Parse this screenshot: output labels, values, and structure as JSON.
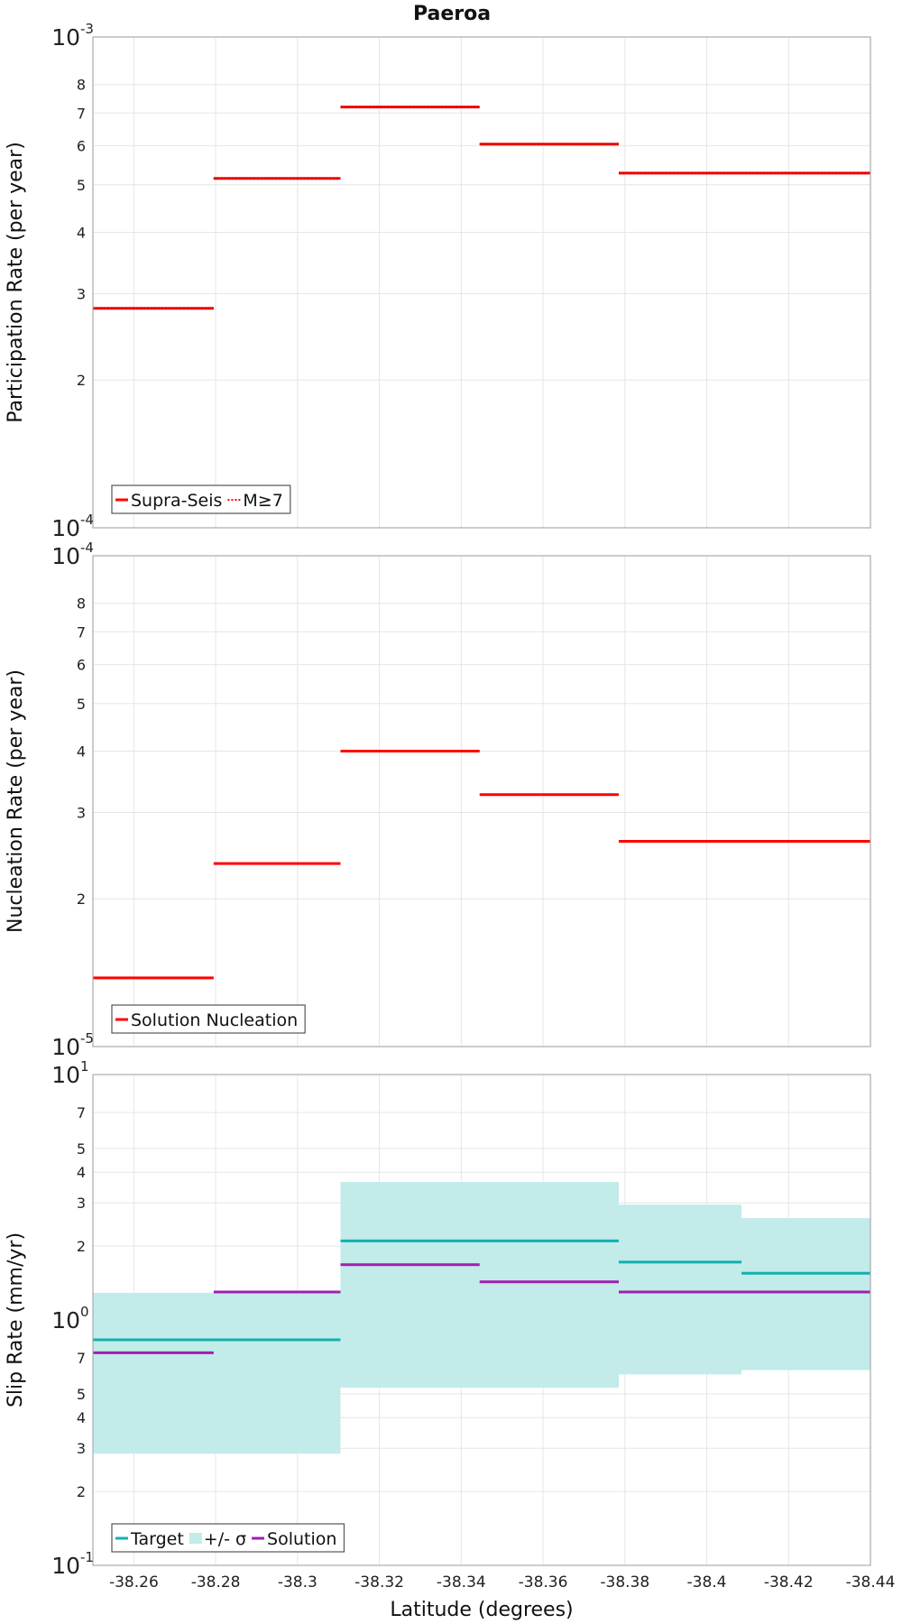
{
  "title": "Paeroa",
  "colors": {
    "red": "#ff0000",
    "teal": "#12b0b0",
    "band": "#c2ebea",
    "purple": "#a020b0",
    "grid": "#e6e6e6",
    "frame": "#aaaaaa"
  },
  "x_axis": {
    "label": "Latitude (degrees)",
    "range": [
      -38.25,
      -38.44
    ],
    "ticks": [
      -38.26,
      -38.28,
      -38.3,
      -38.32,
      -38.34,
      -38.36,
      -38.38,
      -38.4,
      -38.42,
      -38.44
    ],
    "tick_labels": [
      "-38.26",
      "-38.28",
      "-38.3",
      "-38.32",
      "-38.34",
      "-38.36",
      "-38.38",
      "-38.4",
      "-38.42",
      "-38.44"
    ]
  },
  "chart_data": [
    {
      "type": "line",
      "ylabel": "Participation Rate (per year)",
      "yscale": "log",
      "ylim": [
        0.0001,
        0.001
      ],
      "decade_labels": [
        {
          "value": 0.001,
          "base": "10",
          "exp": "-3"
        },
        {
          "value": 0.0001,
          "base": "10",
          "exp": "-4"
        }
      ],
      "minor_ticks": [
        {
          "value": 0.0002,
          "label": "2"
        },
        {
          "value": 0.0003,
          "label": "3"
        },
        {
          "value": 0.0004,
          "label": "4"
        },
        {
          "value": 0.0005,
          "label": "5"
        },
        {
          "value": 0.0006,
          "label": "6"
        },
        {
          "value": 0.0007,
          "label": "7"
        },
        {
          "value": 0.0008,
          "label": "8"
        }
      ],
      "legend": {
        "placement": "bottom-left",
        "entries": [
          {
            "label": "Supra-Seis",
            "style": "solid",
            "color": "#ff0000"
          },
          {
            "label": "M≥7",
            "style": "dotted",
            "color": "#ff0000"
          }
        ]
      },
      "series": [
        {
          "name": "Supra-Seis",
          "style": "solid",
          "color": "#ff0000",
          "segments": [
            {
              "x0": -38.25,
              "x1": -38.2795,
              "y": 0.00028
            },
            {
              "x0": -38.2795,
              "x1": -38.3105,
              "y": 0.000515
            },
            {
              "x0": -38.3105,
              "x1": -38.3445,
              "y": 0.00072
            },
            {
              "x0": -38.3445,
              "x1": -38.3785,
              "y": 0.000605
            },
            {
              "x0": -38.3785,
              "x1": -38.44,
              "y": 0.000528
            }
          ]
        },
        {
          "name": "M≥7",
          "style": "dotted",
          "color": "#cc0000",
          "segments": [
            {
              "x0": -38.25,
              "x1": -38.2795,
              "y": 0.00028
            },
            {
              "x0": -38.2795,
              "x1": -38.3105,
              "y": 0.000515
            },
            {
              "x0": -38.3105,
              "x1": -38.3445,
              "y": 0.00072
            },
            {
              "x0": -38.3445,
              "x1": -38.3785,
              "y": 0.000605
            },
            {
              "x0": -38.3785,
              "x1": -38.44,
              "y": 0.000528
            }
          ]
        }
      ]
    },
    {
      "type": "line",
      "ylabel": "Nucleation Rate (per year)",
      "yscale": "log",
      "ylim": [
        1e-05,
        0.0001
      ],
      "decade_labels": [
        {
          "value": 0.0001,
          "base": "10",
          "exp": "-4"
        },
        {
          "value": 1e-05,
          "base": "10",
          "exp": "-5"
        }
      ],
      "minor_ticks": [
        {
          "value": 2e-05,
          "label": "2"
        },
        {
          "value": 3e-05,
          "label": "3"
        },
        {
          "value": 4e-05,
          "label": "4"
        },
        {
          "value": 5e-05,
          "label": "5"
        },
        {
          "value": 6e-05,
          "label": "6"
        },
        {
          "value": 7e-05,
          "label": "7"
        },
        {
          "value": 8e-05,
          "label": "8"
        }
      ],
      "legend": {
        "placement": "bottom-left",
        "entries": [
          {
            "label": "Solution Nucleation",
            "style": "solid",
            "color": "#ff0000"
          }
        ]
      },
      "series": [
        {
          "name": "Solution Nucleation",
          "style": "solid",
          "color": "#ff0000",
          "segments": [
            {
              "x0": -38.25,
              "x1": -38.2795,
              "y": 1.38e-05
            },
            {
              "x0": -38.2795,
              "x1": -38.3105,
              "y": 2.36e-05
            },
            {
              "x0": -38.3105,
              "x1": -38.3445,
              "y": 4e-05
            },
            {
              "x0": -38.3445,
              "x1": -38.3785,
              "y": 3.26e-05
            },
            {
              "x0": -38.3785,
              "x1": -38.44,
              "y": 2.62e-05
            }
          ]
        }
      ]
    },
    {
      "type": "line",
      "ylabel": "Slip Rate (mm/yr)",
      "yscale": "log",
      "ylim": [
        0.1,
        10
      ],
      "decade_labels": [
        {
          "value": 10,
          "base": "10",
          "exp": "1"
        },
        {
          "value": 1,
          "base": "10",
          "exp": "0"
        },
        {
          "value": 0.1,
          "base": "10",
          "exp": "-1"
        }
      ],
      "minor_ticks": [
        {
          "value": 0.2,
          "label": "2"
        },
        {
          "value": 0.3,
          "label": "3"
        },
        {
          "value": 0.4,
          "label": "4"
        },
        {
          "value": 0.5,
          "label": "5"
        },
        {
          "value": 0.7,
          "label": "7"
        },
        {
          "value": 2,
          "label": "2"
        },
        {
          "value": 3,
          "label": "3"
        },
        {
          "value": 4,
          "label": "4"
        },
        {
          "value": 5,
          "label": "5"
        },
        {
          "value": 7,
          "label": "7"
        }
      ],
      "legend": {
        "placement": "bottom-left",
        "entries": [
          {
            "label": "Target",
            "style": "solid",
            "color": "#12b0b0"
          },
          {
            "label": "+/- σ",
            "style": "band",
            "color": "#c2ebea"
          },
          {
            "label": "Solution",
            "style": "solid",
            "color": "#a020b0"
          }
        ]
      },
      "band": {
        "name": "+/- σ",
        "color": "#c2ebea",
        "segments": [
          {
            "x0": -38.25,
            "x1": -38.3105,
            "lo": 0.285,
            "hi": 1.29
          },
          {
            "x0": -38.3105,
            "x1": -38.3785,
            "lo": 0.53,
            "hi": 3.65
          },
          {
            "x0": -38.3785,
            "x1": -38.4085,
            "lo": 0.6,
            "hi": 2.95
          },
          {
            "x0": -38.4085,
            "x1": -38.44,
            "lo": 0.625,
            "hi": 2.6
          }
        ]
      },
      "series": [
        {
          "name": "Target",
          "style": "solid",
          "color": "#12b0b0",
          "segments": [
            {
              "x0": -38.25,
              "x1": -38.3105,
              "y": 0.83
            },
            {
              "x0": -38.3105,
              "x1": -38.3785,
              "y": 2.1
            },
            {
              "x0": -38.3785,
              "x1": -38.4085,
              "y": 1.72
            },
            {
              "x0": -38.4085,
              "x1": -38.44,
              "y": 1.55
            }
          ]
        },
        {
          "name": "Solution",
          "style": "solid",
          "color": "#a020b0",
          "segments": [
            {
              "x0": -38.25,
              "x1": -38.2795,
              "y": 0.735
            },
            {
              "x0": -38.2795,
              "x1": -38.3105,
              "y": 1.3
            },
            {
              "x0": -38.3105,
              "x1": -38.3445,
              "y": 1.68
            },
            {
              "x0": -38.3445,
              "x1": -38.3785,
              "y": 1.43
            },
            {
              "x0": -38.3785,
              "x1": -38.44,
              "y": 1.3
            }
          ]
        }
      ]
    }
  ]
}
